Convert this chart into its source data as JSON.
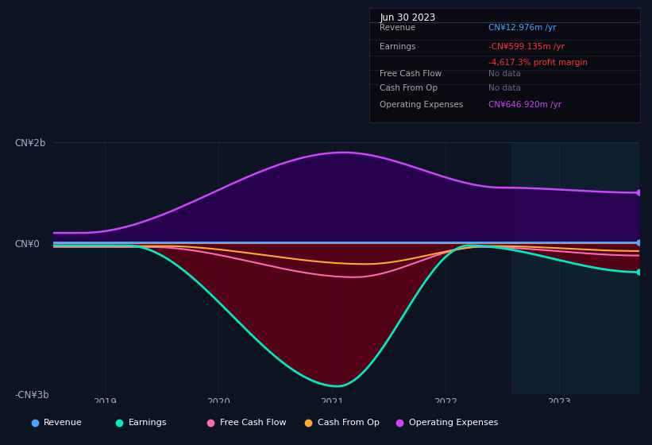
{
  "bg_color": "#0d1421",
  "plot_bg_color": "#0d1421",
  "title_box": {
    "date": "Jun 30 2023",
    "rows": [
      {
        "label": "Revenue",
        "value": "CN¥12.976m /yr",
        "value_color": "#4da6ff",
        "extra": null,
        "extra_color": null
      },
      {
        "label": "Earnings",
        "value": "-CN¥599.135m /yr",
        "value_color": "#ff3333",
        "extra": "-4,617.3% profit margin",
        "extra_color": "#ff3333"
      },
      {
        "label": "Free Cash Flow",
        "value": "No data",
        "value_color": "#666688",
        "extra": null,
        "extra_color": null
      },
      {
        "label": "Cash From Op",
        "value": "No data",
        "value_color": "#666688",
        "extra": null,
        "extra_color": null
      },
      {
        "label": "Operating Expenses",
        "value": "CN¥646.920m /yr",
        "value_color": "#cc44ff",
        "extra": null,
        "extra_color": null
      }
    ]
  },
  "ylim_min": -3000000000,
  "ylim_max": 2000000000,
  "ytick_labels": [
    "-CN¥3b",
    "CN¥0",
    "CN¥2b"
  ],
  "ytick_vals": [
    -3000000000,
    0,
    2000000000
  ],
  "xtick_years": [
    2019,
    2020,
    2021,
    2022,
    2023
  ],
  "xmin": 2018.55,
  "xmax": 2023.7,
  "highlight_start": 2022.58,
  "legend_items": [
    {
      "label": "Revenue",
      "color": "#4da6ff"
    },
    {
      "label": "Earnings",
      "color": "#00e8c0"
    },
    {
      "label": "Free Cash Flow",
      "color": "#ff69b4"
    },
    {
      "label": "Cash From Op",
      "color": "#ffaa33"
    },
    {
      "label": "Operating Expenses",
      "color": "#cc44ff"
    }
  ],
  "revenue_color": "#4da6ff",
  "earnings_color": "#00e8c0",
  "fcf_color": "#ff69b4",
  "cashop_color": "#ffaa33",
  "opex_color": "#cc44ff",
  "earnings_fill": "#5c0015",
  "opex_fill": "#2a0055"
}
